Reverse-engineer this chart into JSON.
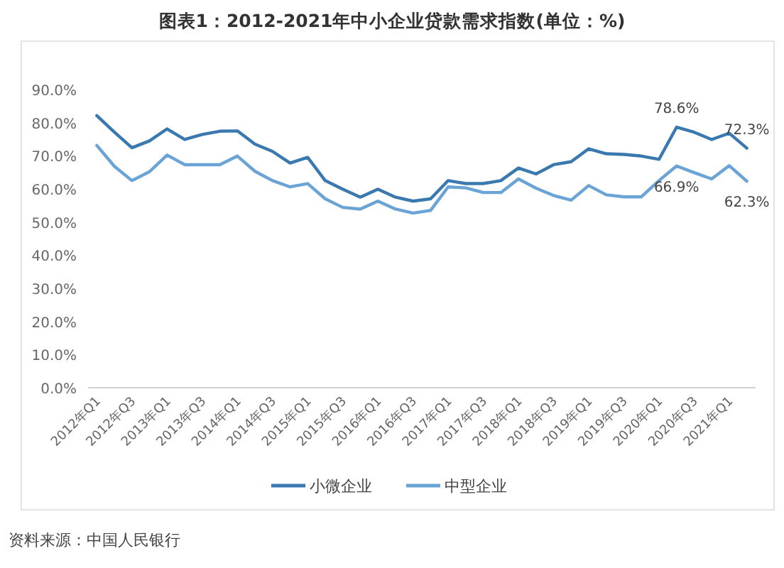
{
  "chart_data": {
    "type": "line",
    "title": "图表1：2012-2021年中小企业贷款需求指数(单位：%)",
    "categories": [
      "2012年Q1",
      null,
      "2012年Q3",
      null,
      "2013年Q1",
      null,
      "2013年Q3",
      null,
      "2014年Q1",
      null,
      "2014年Q3",
      null,
      "2015年Q1",
      null,
      "2015年Q3",
      null,
      "2016年Q1",
      null,
      "2016年Q3",
      null,
      "2017年Q1",
      null,
      "2017年Q3",
      null,
      "2018年Q1",
      null,
      "2018年Q3",
      null,
      "2019年Q1",
      null,
      "2019年Q3",
      null,
      "2020年Q1",
      null,
      "2020年Q3",
      null,
      "2021年Q1",
      null
    ],
    "series": [
      {
        "name": "小微企业",
        "color": "#3a78b0",
        "values": [
          82.1,
          77.1,
          72.4,
          74.5,
          78.1,
          74.9,
          76.4,
          77.4,
          77.5,
          73.5,
          71.3,
          67.8,
          69.5,
          62.5,
          59.9,
          57.5,
          59.9,
          57.5,
          56.3,
          57.0,
          62.5,
          61.6,
          61.6,
          62.5,
          66.3,
          64.5,
          67.3,
          68.2,
          72.1,
          70.6,
          70.4,
          69.9,
          68.9,
          78.6,
          77.1,
          74.9,
          76.8,
          72.3
        ],
        "value_labels": [
          null,
          null,
          null,
          null,
          null,
          null,
          null,
          null,
          null,
          null,
          null,
          null,
          null,
          null,
          null,
          null,
          null,
          null,
          null,
          null,
          null,
          null,
          null,
          null,
          null,
          null,
          null,
          null,
          null,
          null,
          null,
          null,
          null,
          "78.6%",
          null,
          null,
          null,
          "72.3%"
        ]
      },
      {
        "name": "中型企业",
        "color": "#6aa3d6",
        "values": [
          73.1,
          66.8,
          62.5,
          65.2,
          70.2,
          67.3,
          67.3,
          67.3,
          69.9,
          65.3,
          62.5,
          60.6,
          61.6,
          57.0,
          54.4,
          53.9,
          56.3,
          53.9,
          52.7,
          53.5,
          60.6,
          60.3,
          58.9,
          58.9,
          63.0,
          60.2,
          58.0,
          56.6,
          61.0,
          58.2,
          57.6,
          57.6,
          62.5,
          66.9,
          64.9,
          63.0,
          67.0,
          62.3
        ],
        "value_labels": [
          null,
          null,
          null,
          null,
          null,
          null,
          null,
          null,
          null,
          null,
          null,
          null,
          null,
          null,
          null,
          null,
          null,
          null,
          null,
          null,
          null,
          null,
          null,
          null,
          null,
          null,
          null,
          null,
          null,
          null,
          null,
          null,
          null,
          "66.9%",
          null,
          null,
          null,
          "62.3%"
        ]
      }
    ],
    "ylim": [
      0,
      90
    ],
    "yticks": [
      {
        "value": 0,
        "label": "0.0%"
      },
      {
        "value": 10,
        "label": "10.0%"
      },
      {
        "value": 20,
        "label": "20.0%"
      },
      {
        "value": 30,
        "label": "30.0%"
      },
      {
        "value": 40,
        "label": "40.0%"
      },
      {
        "value": 50,
        "label": "50.0%"
      },
      {
        "value": 60,
        "label": "60.0%"
      },
      {
        "value": 70,
        "label": "70.0%"
      },
      {
        "value": 80,
        "label": "80.0%"
      },
      {
        "value": 90,
        "label": "90.0%"
      }
    ],
    "legend": "bottom",
    "annotations": [
      "资料来源：中国人民银行"
    ]
  }
}
